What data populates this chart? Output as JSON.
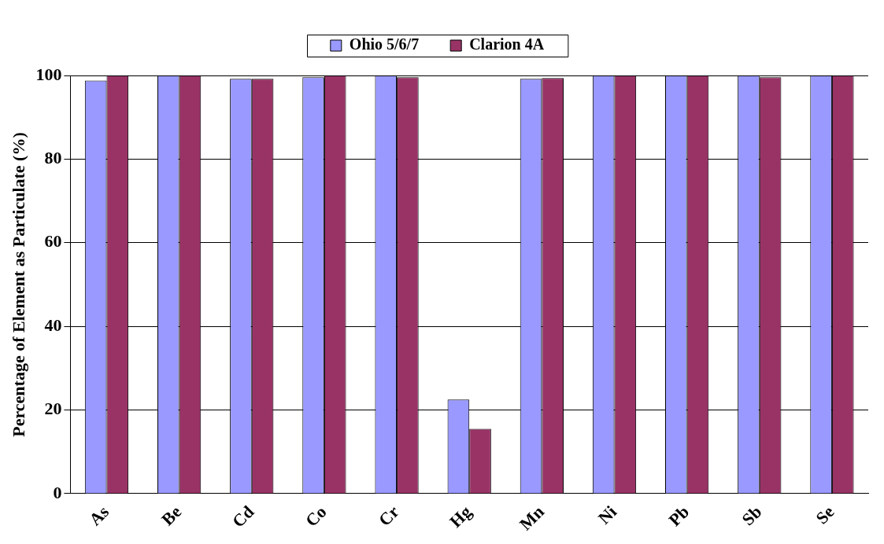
{
  "chart_data": {
    "type": "bar",
    "ylabel": "Percentage of Element as Particulate (%)",
    "categories": [
      "As",
      "Be",
      "Cd",
      "Co",
      "Cr",
      "Hg",
      "Mn",
      "Ni",
      "Pb",
      "Sb",
      "Se"
    ],
    "series": [
      {
        "name": "Ohio 5/6/7",
        "color": "#9999ff",
        "values": [
          98.8,
          100,
          99.2,
          99.6,
          100,
          22.5,
          99.2,
          100,
          100,
          100,
          100
        ]
      },
      {
        "name": "Clarion 4A",
        "color": "#993366",
        "values": [
          100,
          100,
          99.2,
          100,
          99.6,
          15.5,
          99.4,
          100,
          100,
          99.6,
          100
        ]
      }
    ],
    "ylim": [
      0,
      100
    ],
    "yticks": [
      0,
      20,
      40,
      60,
      80,
      100
    ],
    "grid": "y",
    "legend": "top"
  }
}
